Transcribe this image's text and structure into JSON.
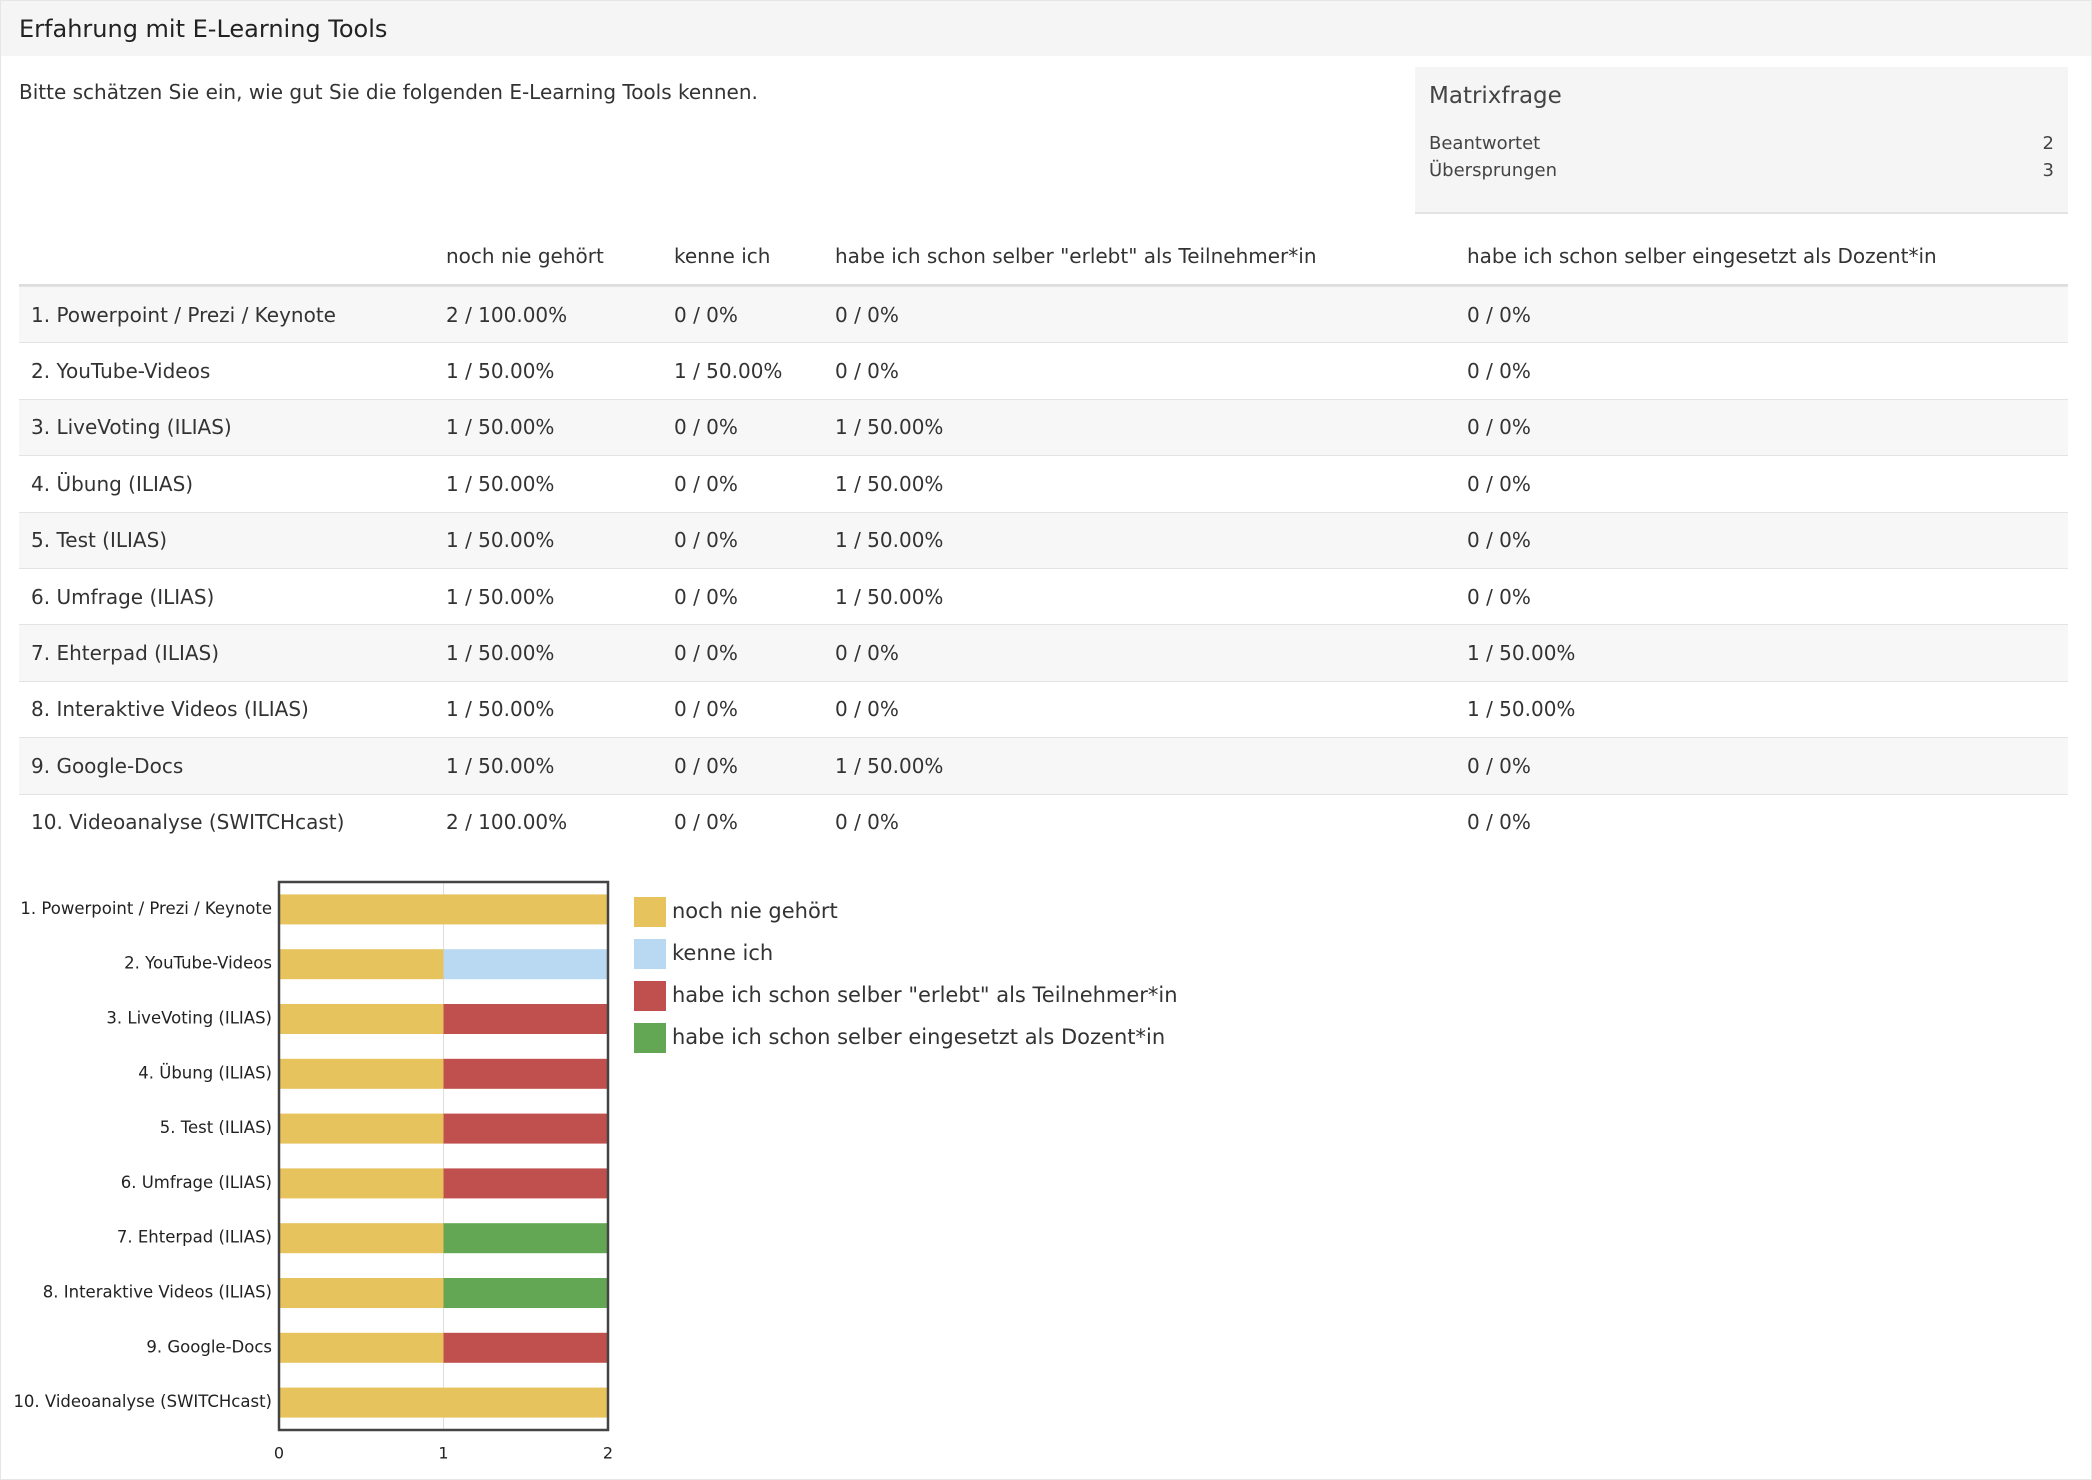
{
  "header": {
    "title": "Erfahrung mit E-Learning Tools"
  },
  "question": "Bitte schätzen Sie ein, wie gut Sie die folgenden E-Learning Tools kennen.",
  "summary": {
    "title": "Matrixfrage",
    "rows": [
      [
        "Beantwortet",
        2
      ],
      [
        "Übersprungen",
        3
      ]
    ]
  },
  "table": {
    "columns": [
      "noch nie gehört",
      "kenne ich",
      "habe ich schon selber \"erlebt\" als Teilnehmer*in",
      "habe ich schon selber eingesetzt als Dozent*in"
    ],
    "rows": [
      [
        "1. Powerpoint / Prezi / Keynote",
        "2 / 100.00%",
        "0 / 0%",
        "0 / 0%",
        "0 / 0%"
      ],
      [
        "2. YouTube-Videos",
        "1 / 50.00%",
        "1 / 50.00%",
        "0 / 0%",
        "0 / 0%"
      ],
      [
        "3. LiveVoting (ILIAS)",
        "1 / 50.00%",
        "0 / 0%",
        "1 / 50.00%",
        "0 / 0%"
      ],
      [
        "4. Übung (ILIAS)",
        "1 / 50.00%",
        "0 / 0%",
        "1 / 50.00%",
        "0 / 0%"
      ],
      [
        "5. Test (ILIAS)",
        "1 / 50.00%",
        "0 / 0%",
        "1 / 50.00%",
        "0 / 0%"
      ],
      [
        "6. Umfrage (ILIAS)",
        "1 / 50.00%",
        "0 / 0%",
        "1 / 50.00%",
        "0 / 0%"
      ],
      [
        "7. Ehterpad (ILIAS)",
        "1 / 50.00%",
        "0 / 0%",
        "0 / 0%",
        "1 / 50.00%"
      ],
      [
        "8. Interaktive Videos (ILIAS)",
        "1 / 50.00%",
        "0 / 0%",
        "0 / 0%",
        "1 / 50.00%"
      ],
      [
        "9. Google-Docs",
        "1 / 50.00%",
        "0 / 0%",
        "1 / 50.00%",
        "0 / 0%"
      ],
      [
        "10. Videoanalyse (SWITCHcast)",
        "2 / 100.00%",
        "0 / 0%",
        "0 / 0%",
        "0 / 0%"
      ]
    ]
  },
  "chart_data": {
    "type": "bar",
    "orientation": "horizontal",
    "stacked": true,
    "categories": [
      "1. Powerpoint / Prezi / Keynote",
      "2. YouTube-Videos",
      "3. LiveVoting (ILIAS)",
      "4. Übung (ILIAS)",
      "5. Test (ILIAS)",
      "6. Umfrage (ILIAS)",
      "7. Ehterpad (ILIAS)",
      "8. Interaktive Videos (ILIAS)",
      "9. Google-Docs",
      "10. Videoanalyse (SWITCHcast)"
    ],
    "series": [
      {
        "name": "noch nie gehört",
        "color": "#e6c35c",
        "values": [
          2,
          1,
          1,
          1,
          1,
          1,
          1,
          1,
          1,
          2
        ]
      },
      {
        "name": "kenne ich",
        "color": "#b9d8f2",
        "values": [
          0,
          1,
          0,
          0,
          0,
          0,
          0,
          0,
          0,
          0
        ]
      },
      {
        "name": "habe ich schon selber \"erlebt\" als Teilnehmer*in",
        "color": "#c0504d",
        "values": [
          0,
          0,
          1,
          1,
          1,
          1,
          0,
          0,
          1,
          0
        ]
      },
      {
        "name": "habe ich schon selber eingesetzt als Dozent*in",
        "color": "#63a754",
        "values": [
          0,
          0,
          0,
          0,
          0,
          0,
          1,
          1,
          0,
          0
        ]
      }
    ],
    "xlim": [
      0,
      2
    ],
    "xticks": [
      0,
      1,
      2
    ],
    "grid": true
  }
}
